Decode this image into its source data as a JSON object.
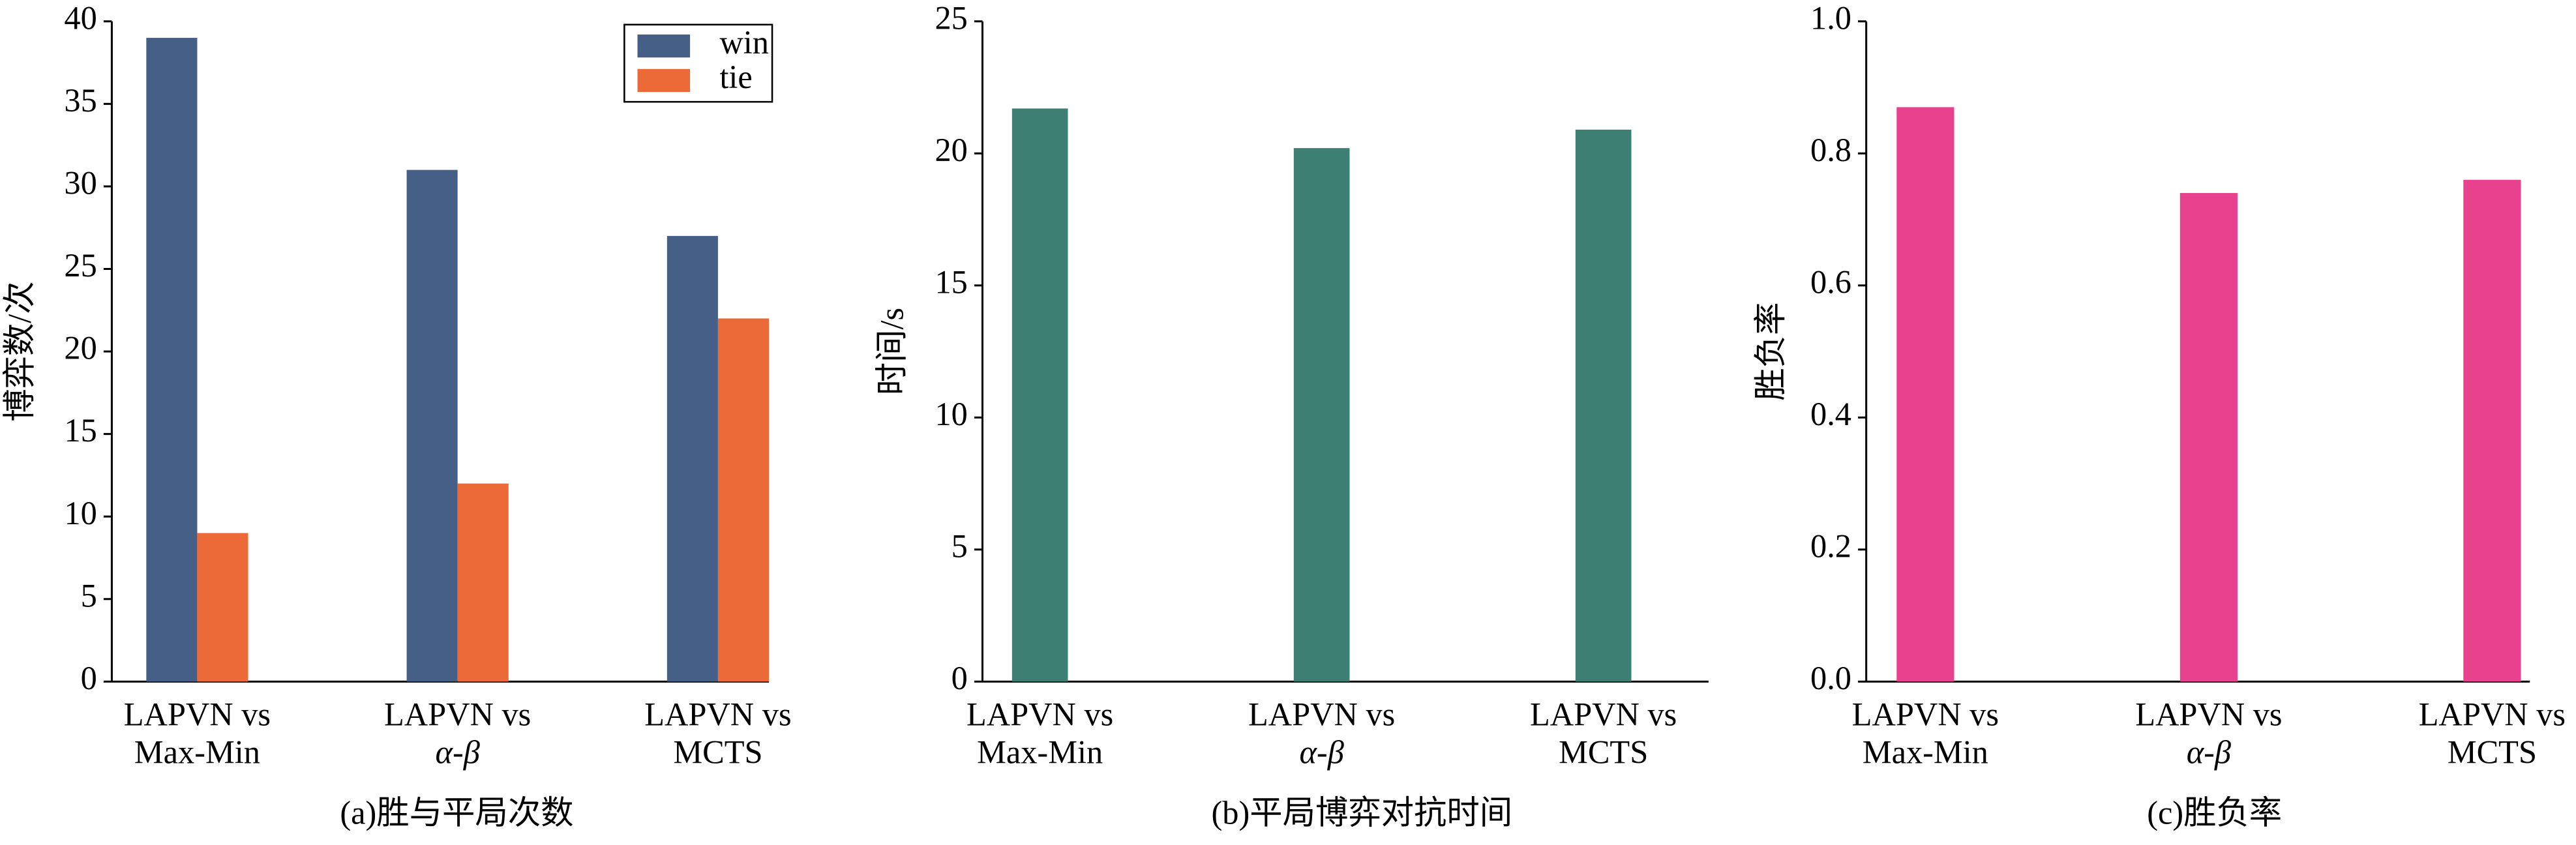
{
  "chart_data": [
    {
      "type": "bar",
      "title": "(a)胜与平局次数",
      "ylabel": "博弈数/次",
      "categories": [
        [
          "LAPVN vs",
          "Max-Min"
        ],
        [
          "LAPVN vs",
          "α-β"
        ],
        [
          "LAPVN vs",
          "MCTS"
        ]
      ],
      "series": [
        {
          "name": "win",
          "color": "#465f86",
          "values": [
            39,
            31,
            27
          ]
        },
        {
          "name": "tie",
          "color": "#ec6a37",
          "values": [
            9,
            12,
            22
          ]
        }
      ],
      "ylim": [
        0,
        40
      ],
      "yticks": [
        0,
        5,
        10,
        15,
        20,
        25,
        30,
        35,
        40
      ],
      "legend": "upper right"
    },
    {
      "type": "bar",
      "title": "(b)平局博弈对抗时间",
      "ylabel": "时间/s",
      "categories": [
        [
          "LAPVN vs",
          "Max-Min"
        ],
        [
          "LAPVN vs",
          "α-β"
        ],
        [
          "LAPVN vs",
          "MCTS"
        ]
      ],
      "values": [
        21.7,
        20.2,
        20.9
      ],
      "color": "#3d7f72",
      "ylim": [
        0,
        25
      ],
      "yticks": [
        0,
        5,
        10,
        15,
        20,
        25
      ]
    },
    {
      "type": "bar",
      "title": "(c)胜负率",
      "ylabel": "胜负率",
      "categories": [
        [
          "LAPVN vs",
          "Max-Min"
        ],
        [
          "LAPVN vs",
          "α-β"
        ],
        [
          "LAPVN vs",
          "MCTS"
        ]
      ],
      "values": [
        0.87,
        0.74,
        0.76
      ],
      "color": "#e8418e",
      "ylim": [
        0,
        1
      ],
      "yticks": [
        {
          "value": 0,
          "label": "0.0"
        },
        0.2,
        0.4,
        0.6,
        0.8,
        {
          "value": 1,
          "label": "1.0"
        }
      ]
    }
  ]
}
